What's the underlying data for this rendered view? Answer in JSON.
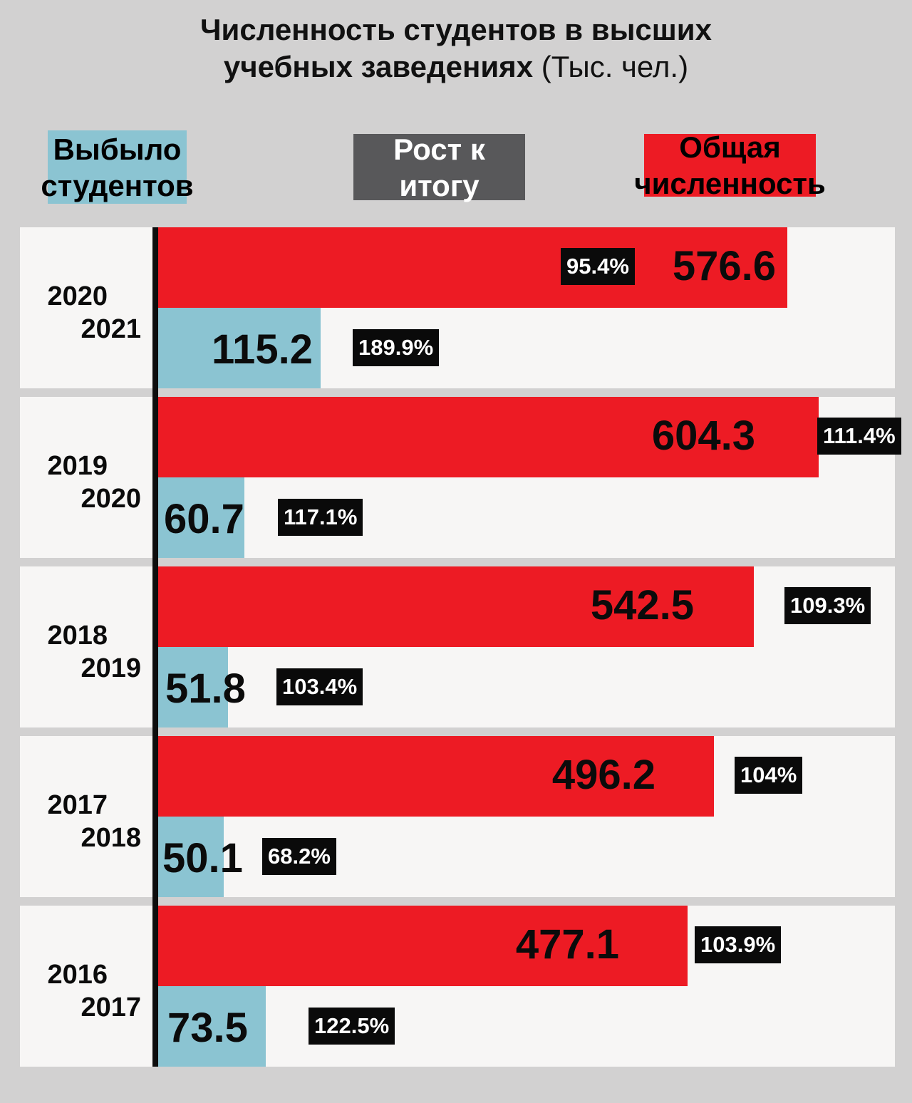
{
  "title": {
    "line1": "Численность студентов в высших",
    "line2_bold": "учебных заведениях",
    "line2_normal": " (Тыс. чел.)"
  },
  "legend": {
    "dropped": {
      "line1": "Выбыло",
      "line2": "студентов"
    },
    "growth": {
      "line1": "Рост к",
      "line2": "итогу"
    },
    "total": {
      "line1": "Общая",
      "line2": "численность"
    }
  },
  "chart_data": {
    "type": "bar",
    "orientation": "horizontal",
    "title": "Численность студентов в высших учебных заведениях (Тыс. чел.)",
    "value_unit": "Тыс. чел.",
    "legend_position": "top",
    "series": [
      {
        "name": "Общая численность",
        "color": "#ED1B24"
      },
      {
        "name": "Выбыло студентов",
        "color": "#8BC4D2"
      },
      {
        "name": "Рост к итогу",
        "style": "black-badge"
      }
    ],
    "rows": [
      {
        "period_start": "2020",
        "period_end": "2021",
        "total": "576.6",
        "total_growth": "95.4%",
        "dropped": "115.2",
        "dropped_growth": "189.9%"
      },
      {
        "period_start": "2019",
        "period_end": "2020",
        "total": "604.3",
        "total_growth": "111.4%",
        "dropped": "60.7",
        "dropped_growth": "117.1%"
      },
      {
        "period_start": "2018",
        "period_end": "2019",
        "total": "542.5",
        "total_growth": "109.3%",
        "dropped": "51.8",
        "dropped_growth": "103.4%"
      },
      {
        "period_start": "2017",
        "period_end": "2018",
        "total": "496.2",
        "total_growth": "104%",
        "dropped": "50.1",
        "dropped_growth": "68.2%"
      },
      {
        "period_start": "2016",
        "period_end": "2017",
        "total": "477.1",
        "total_growth": "103.9%",
        "dropped": "73.5",
        "dropped_growth": "122.5%"
      }
    ],
    "colors": {
      "total_bar": "#ED1B24",
      "dropped_bar": "#8BC4D2",
      "badge_bg": "#0A0A0A",
      "badge_text": "#FFFFFF",
      "panel_bg": "#F7F6F5",
      "page_bg": "#D2D1D1",
      "axis": "#0D0D0D",
      "legend_growth_bg": "#58585A"
    }
  }
}
